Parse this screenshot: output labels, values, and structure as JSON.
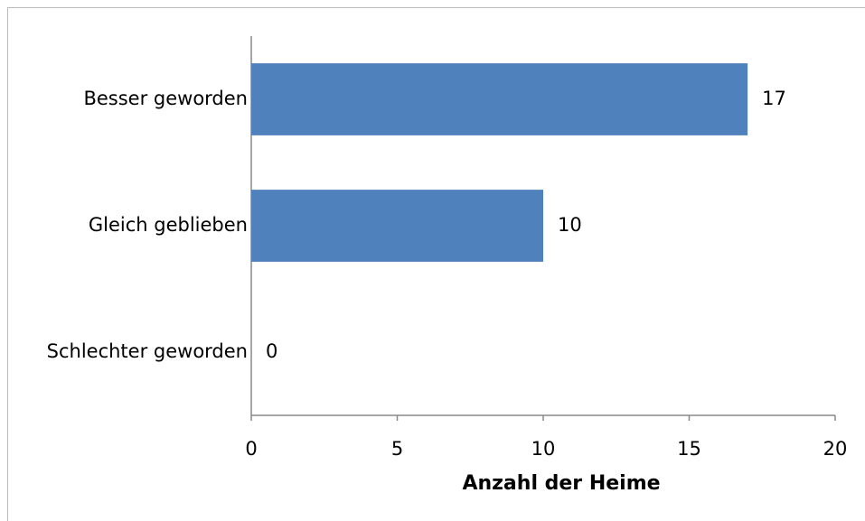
{
  "chart_data": {
    "type": "bar",
    "orientation": "horizontal",
    "categories": [
      "Besser geworden",
      "Gleich geblieben",
      "Schlechter geworden"
    ],
    "values": [
      17,
      10,
      0
    ],
    "color": "#4f81bd",
    "x_label": "Anzahl der Heime",
    "xlim": [
      0,
      20
    ],
    "xticks": [
      0,
      5,
      10,
      15,
      20
    ],
    "grid": false
  }
}
